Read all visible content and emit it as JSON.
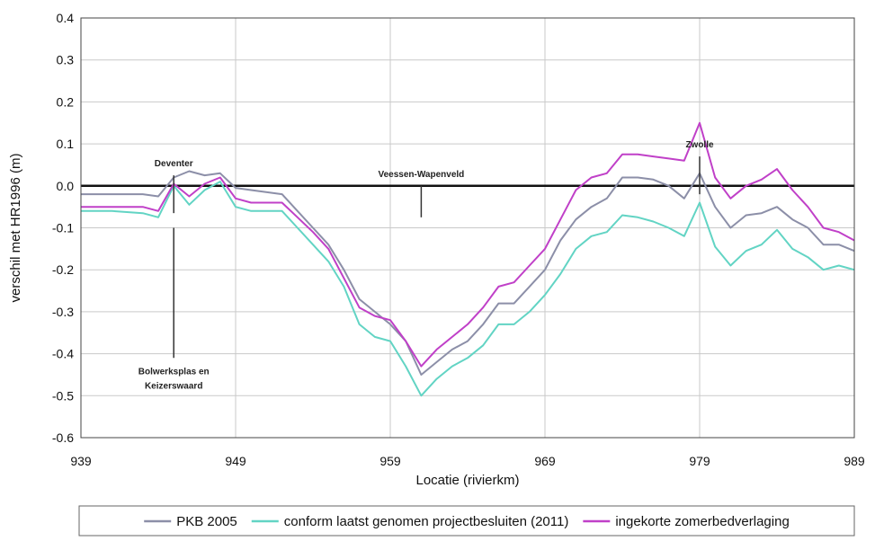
{
  "chart_data": {
    "type": "line",
    "xlabel": "Locatie (rivierkm)",
    "ylabel": "verschil met HR1996 (m)",
    "xlim": [
      939,
      989
    ],
    "ylim": [
      -0.6,
      0.4
    ],
    "xticks": [
      939,
      949,
      959,
      969,
      979,
      989
    ],
    "yticks": [
      -0.6,
      -0.5,
      -0.4,
      -0.3,
      -0.2,
      -0.1,
      0.0,
      0.1,
      0.2,
      0.3,
      0.4
    ],
    "ytick_labels": [
      "-0.6",
      "-0.5",
      "-0.4",
      "-0.3",
      "-0.2",
      "-0.1",
      "0.0",
      "0.1",
      "0.2",
      "0.3",
      "0.4"
    ],
    "grid": true,
    "legend": "bottom",
    "x": [
      939,
      941,
      943,
      944,
      945,
      946,
      947,
      948,
      949,
      950,
      952,
      953,
      954,
      955,
      956,
      957,
      958,
      959,
      960,
      961,
      962,
      963,
      964,
      965,
      966,
      967,
      968,
      969,
      970,
      971,
      972,
      973,
      974,
      975,
      976,
      977,
      978,
      979,
      980,
      981,
      982,
      983,
      984,
      985,
      986,
      987,
      988,
      989
    ],
    "series": [
      {
        "name": "PKB 2005",
        "color": "#8c8fa8",
        "values": [
          -0.02,
          -0.02,
          -0.02,
          -0.025,
          0.02,
          0.035,
          0.025,
          0.03,
          -0.005,
          -0.01,
          -0.02,
          -0.06,
          -0.1,
          -0.14,
          -0.2,
          -0.27,
          -0.3,
          -0.33,
          -0.37,
          -0.45,
          -0.42,
          -0.39,
          -0.37,
          -0.33,
          -0.28,
          -0.28,
          -0.24,
          -0.2,
          -0.13,
          -0.08,
          -0.05,
          -0.03,
          0.02,
          0.02,
          0.015,
          0.0,
          -0.03,
          0.03,
          -0.05,
          -0.1,
          -0.07,
          -0.065,
          -0.05,
          -0.08,
          -0.1,
          -0.14,
          -0.14,
          -0.155
        ]
      },
      {
        "name": "conform laatst genomen projectbesluiten (2011)",
        "color": "#62d4c4",
        "values": [
          -0.06,
          -0.06,
          -0.065,
          -0.075,
          0.0,
          -0.045,
          -0.01,
          0.01,
          -0.05,
          -0.06,
          -0.06,
          -0.1,
          -0.14,
          -0.18,
          -0.24,
          -0.33,
          -0.36,
          -0.37,
          -0.43,
          -0.5,
          -0.46,
          -0.43,
          -0.41,
          -0.38,
          -0.33,
          -0.33,
          -0.3,
          -0.26,
          -0.21,
          -0.15,
          -0.12,
          -0.11,
          -0.07,
          -0.075,
          -0.085,
          -0.1,
          -0.12,
          -0.04,
          -0.145,
          -0.19,
          -0.155,
          -0.14,
          -0.105,
          -0.15,
          -0.17,
          -0.2,
          -0.19,
          -0.2
        ]
      },
      {
        "name": "ingekorte zomerbedverlaging",
        "color": "#c040c8",
        "values": [
          -0.05,
          -0.05,
          -0.05,
          -0.06,
          0.005,
          -0.025,
          0.005,
          0.02,
          -0.03,
          -0.04,
          -0.04,
          -0.075,
          -0.11,
          -0.15,
          -0.22,
          -0.29,
          -0.31,
          -0.32,
          -0.37,
          -0.43,
          -0.39,
          -0.36,
          -0.33,
          -0.29,
          -0.24,
          -0.23,
          -0.19,
          -0.15,
          -0.08,
          -0.01,
          0.02,
          0.03,
          0.075,
          0.075,
          0.07,
          0.065,
          0.06,
          0.15,
          0.02,
          -0.03,
          0.0,
          0.015,
          0.04,
          -0.01,
          -0.05,
          -0.1,
          -0.11,
          -0.13
        ]
      }
    ],
    "annotations": [
      {
        "lines": [
          "Deventer"
        ],
        "x": 945,
        "y_from": 0.025,
        "y_to": -0.065,
        "color": "#333333"
      },
      {
        "lines": [
          "Veessen-Wapenveld"
        ],
        "x": 961,
        "y_from": 0.0,
        "y_to": -0.075,
        "color": "#333333"
      },
      {
        "lines": [
          "Zwolle"
        ],
        "x": 979,
        "y_from": 0.07,
        "y_to": -0.02,
        "color": "#333333"
      },
      {
        "lines": [
          "Bolwerksplas en",
          "Keizerswaard"
        ],
        "x": 945,
        "y_from": -0.1,
        "y_to": -0.41,
        "color": "#333333"
      }
    ]
  }
}
